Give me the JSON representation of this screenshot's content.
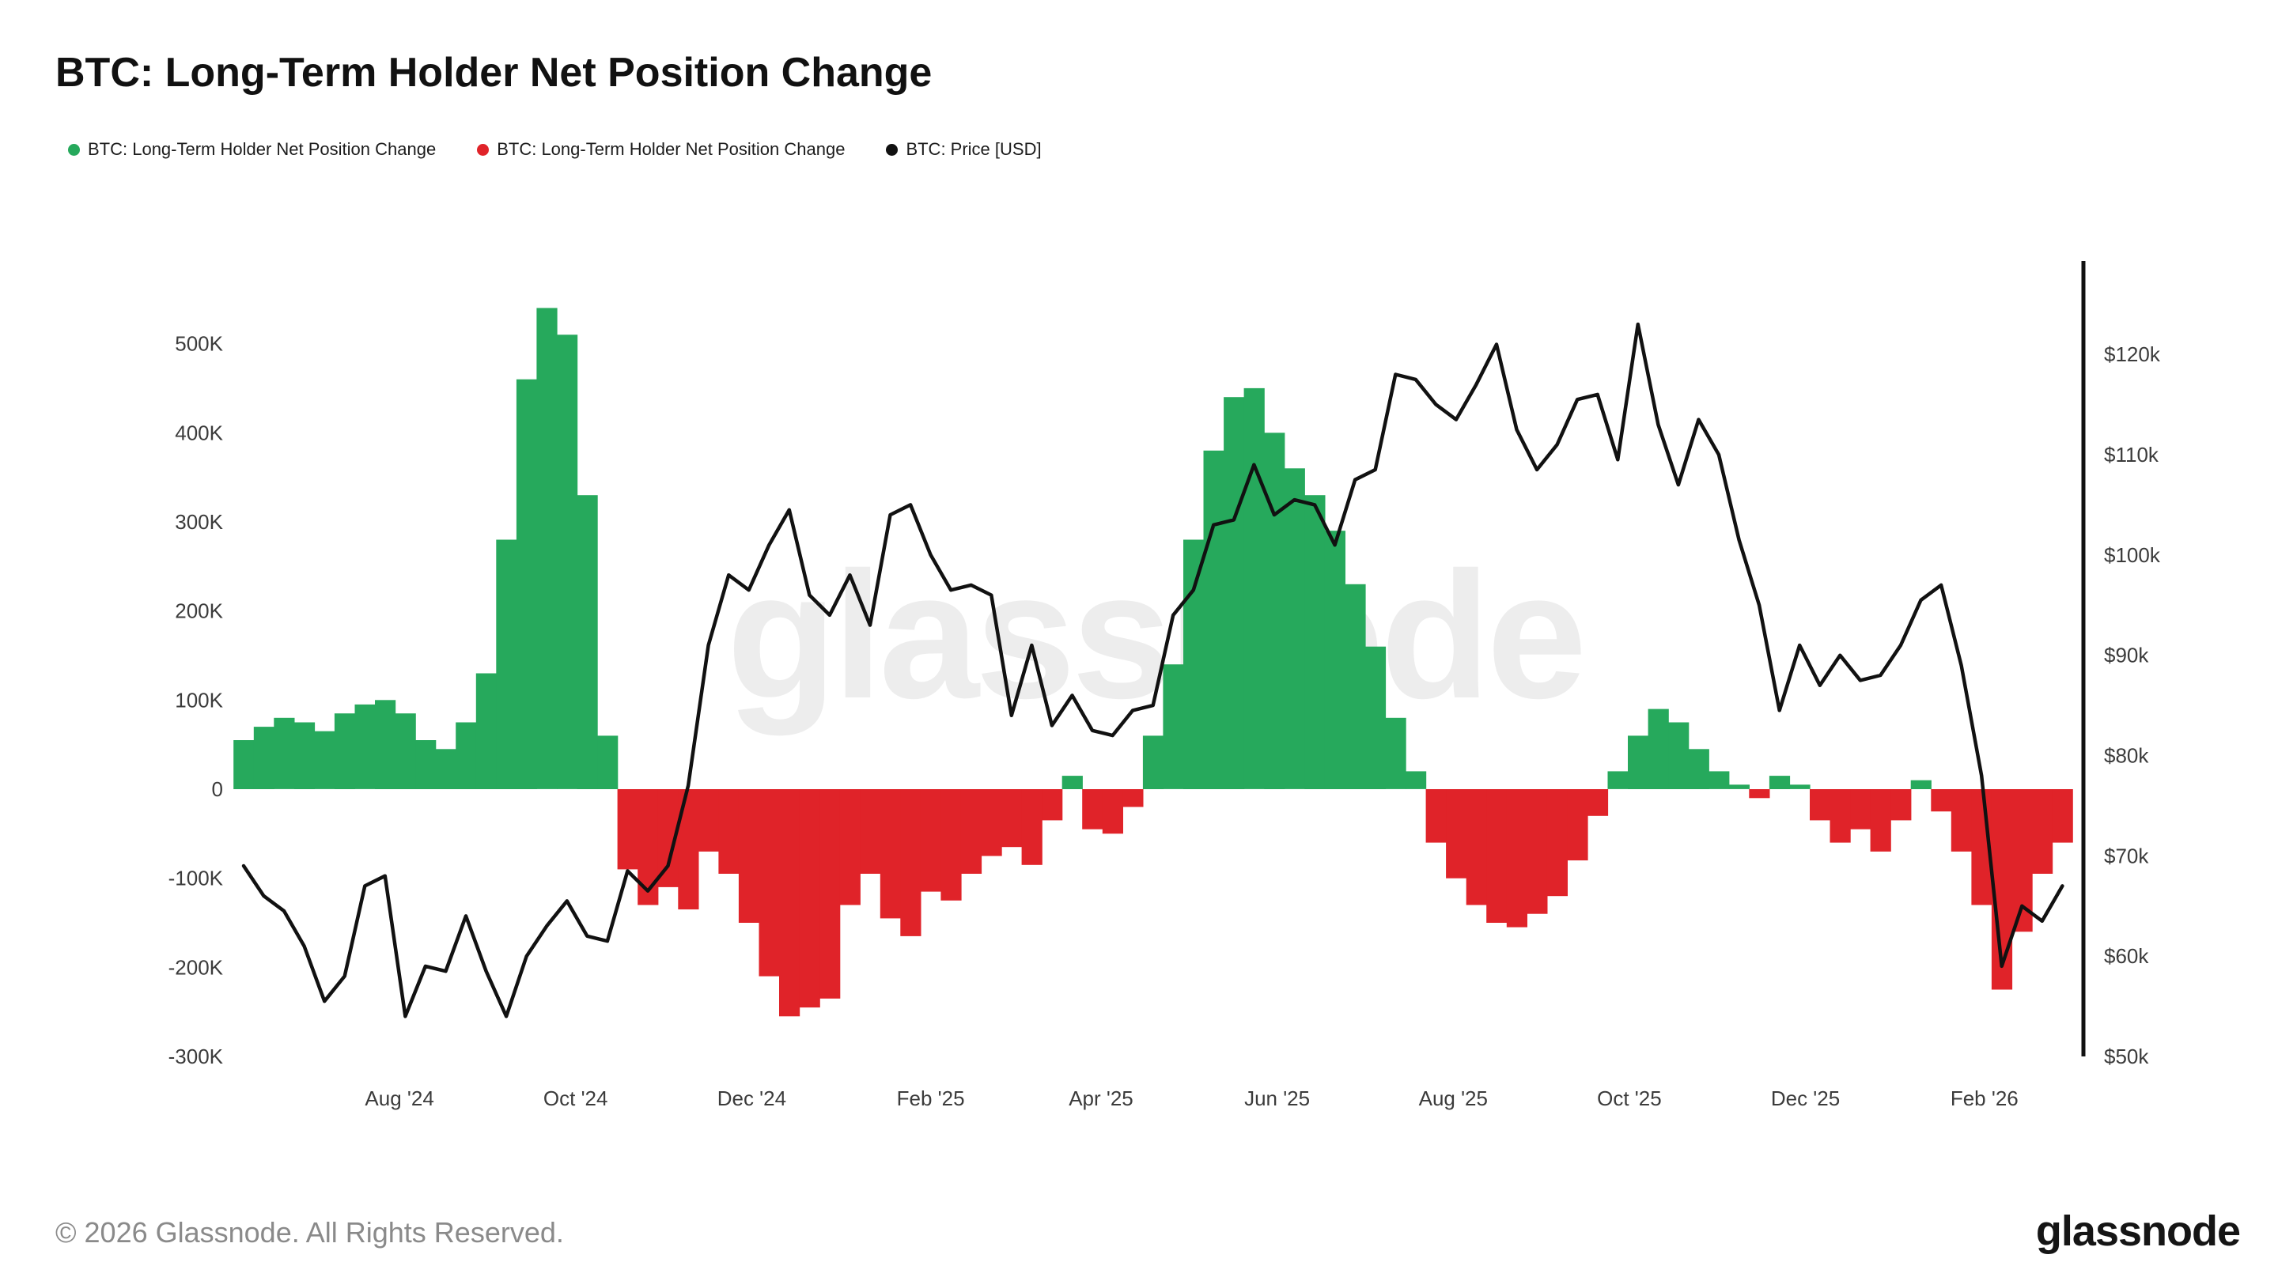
{
  "title": "BTC: Long-Term Holder Net Position Change",
  "watermark": "glassnode",
  "watermark_color": "#ededed",
  "legend": [
    {
      "label": "BTC: Long-Term Holder Net Position Change",
      "color": "#26a95c"
    },
    {
      "label": "BTC: Long-Term Holder Net Position Change",
      "color": "#e02329"
    },
    {
      "label": "BTC: Price [USD]",
      "color": "#111111"
    }
  ],
  "footer": {
    "copyright": "© 2026 Glassnode. All Rights Reserved.",
    "logo": "glassnode"
  },
  "chart_data": {
    "type": "bar+line",
    "title": "BTC: Long-Term Holder Net Position Change",
    "grid": false,
    "legend_position": "top-left",
    "x_domain": [
      "2024-06-08",
      "2026-03-01"
    ],
    "x": [
      "2024-06-08",
      "2024-06-15",
      "2024-06-22",
      "2024-06-29",
      "2024-07-06",
      "2024-07-13",
      "2024-07-20",
      "2024-07-27",
      "2024-08-03",
      "2024-08-10",
      "2024-08-17",
      "2024-08-24",
      "2024-08-31",
      "2024-09-07",
      "2024-09-14",
      "2024-09-21",
      "2024-09-28",
      "2024-10-05",
      "2024-10-12",
      "2024-10-19",
      "2024-10-26",
      "2024-11-02",
      "2024-11-09",
      "2024-11-16",
      "2024-11-23",
      "2024-11-30",
      "2024-12-07",
      "2024-12-14",
      "2024-12-21",
      "2024-12-28",
      "2025-01-04",
      "2025-01-11",
      "2025-01-18",
      "2025-01-25",
      "2025-02-01",
      "2025-02-08",
      "2025-02-15",
      "2025-02-22",
      "2025-03-01",
      "2025-03-08",
      "2025-03-15",
      "2025-03-22",
      "2025-03-29",
      "2025-04-05",
      "2025-04-12",
      "2025-04-19",
      "2025-04-26",
      "2025-05-03",
      "2025-05-10",
      "2025-05-17",
      "2025-05-24",
      "2025-05-31",
      "2025-06-07",
      "2025-06-14",
      "2025-06-21",
      "2025-06-28",
      "2025-07-05",
      "2025-07-12",
      "2025-07-19",
      "2025-07-26",
      "2025-08-02",
      "2025-08-09",
      "2025-08-16",
      "2025-08-23",
      "2025-08-30",
      "2025-09-06",
      "2025-09-13",
      "2025-09-20",
      "2025-09-27",
      "2025-10-04",
      "2025-10-11",
      "2025-10-18",
      "2025-10-25",
      "2025-11-01",
      "2025-11-08",
      "2025-11-15",
      "2025-11-22",
      "2025-11-29",
      "2025-12-06",
      "2025-12-13",
      "2025-12-20",
      "2025-12-27",
      "2026-01-03",
      "2026-01-10",
      "2026-01-17",
      "2026-01-24",
      "2026-01-31",
      "2026-02-07",
      "2026-02-14",
      "2026-02-21",
      "2026-02-28"
    ],
    "series": [
      {
        "name": "BTC: Long-Term Holder Net Position Change",
        "type": "bar",
        "axis": "left",
        "unit": "K BTC",
        "color_positive": "#26a95c",
        "color_negative": "#e02329",
        "values": [
          55,
          70,
          80,
          75,
          65,
          85,
          95,
          100,
          85,
          55,
          45,
          75,
          130,
          280,
          460,
          540,
          510,
          330,
          60,
          -90,
          -130,
          -110,
          -135,
          -70,
          -95,
          -150,
          -210,
          -255,
          -245,
          -235,
          -130,
          -95,
          -145,
          -165,
          -115,
          -125,
          -95,
          -75,
          -65,
          -85,
          -35,
          15,
          -45,
          -50,
          -20,
          60,
          140,
          280,
          380,
          440,
          450,
          400,
          360,
          330,
          290,
          230,
          160,
          80,
          20,
          -60,
          -100,
          -130,
          -150,
          -155,
          -140,
          -120,
          -80,
          -30,
          20,
          60,
          90,
          75,
          45,
          20,
          5,
          -10,
          15,
          5,
          -35,
          -60,
          -45,
          -70,
          -35,
          10,
          -25,
          -70,
          -130,
          -225,
          -160,
          -95,
          -60
        ]
      },
      {
        "name": "BTC: Price [USD]",
        "type": "line",
        "axis": "right",
        "unit": "USD thousands",
        "color": "#111111",
        "values": [
          69,
          66,
          64.5,
          61,
          55.5,
          58,
          67,
          68,
          54,
          59,
          58.5,
          64,
          58.5,
          54,
          60,
          63,
          65.5,
          62,
          61.5,
          68.5,
          66.5,
          69,
          77,
          91,
          98,
          96.5,
          101,
          104.5,
          96,
          94,
          98,
          93,
          104,
          105,
          100,
          96.5,
          97,
          96,
          84,
          91,
          83,
          86,
          82.5,
          82,
          84.5,
          85,
          94,
          96.5,
          103,
          103.5,
          109,
          104,
          105.5,
          105,
          101,
          107.5,
          108.5,
          118,
          117.5,
          115,
          113.5,
          117,
          121,
          112.5,
          108.5,
          111,
          115.5,
          116,
          109.5,
          123,
          113,
          107,
          113.5,
          110,
          101.5,
          95,
          84.5,
          91,
          87,
          90,
          87.5,
          88,
          91,
          95.5,
          97,
          89,
          78,
          59,
          65,
          63.5,
          67
        ]
      }
    ],
    "left_axis": {
      "min": -300,
      "max": 560,
      "unit": "K",
      "ticks": [
        {
          "value": 500,
          "label": "500K"
        },
        {
          "value": 400,
          "label": "400K"
        },
        {
          "value": 300,
          "label": "300K"
        },
        {
          "value": 200,
          "label": "200K"
        },
        {
          "value": 100,
          "label": "100K"
        },
        {
          "value": 0,
          "label": "0"
        },
        {
          "value": -100,
          "label": "-100K"
        },
        {
          "value": -200,
          "label": "-200K"
        },
        {
          "value": -300,
          "label": "-300K"
        }
      ]
    },
    "right_axis": {
      "min": 50,
      "max": 126.4,
      "unit": "$k",
      "ticks": [
        {
          "value": 120,
          "label": "$120k"
        },
        {
          "value": 110,
          "label": "$110k"
        },
        {
          "value": 100,
          "label": "$100k"
        },
        {
          "value": 90,
          "label": "$90k"
        },
        {
          "value": 80,
          "label": "$80k"
        },
        {
          "value": 70,
          "label": "$70k"
        },
        {
          "value": 60,
          "label": "$60k"
        },
        {
          "value": 50,
          "label": "$50k"
        }
      ]
    },
    "x_ticks": [
      {
        "date": "2024-08-01",
        "label": "Aug '24"
      },
      {
        "date": "2024-10-01",
        "label": "Oct '24"
      },
      {
        "date": "2024-12-01",
        "label": "Dec '24"
      },
      {
        "date": "2025-02-01",
        "label": "Feb '25"
      },
      {
        "date": "2025-04-01",
        "label": "Apr '25"
      },
      {
        "date": "2025-06-01",
        "label": "Jun '25"
      },
      {
        "date": "2025-08-01",
        "label": "Aug '25"
      },
      {
        "date": "2025-10-01",
        "label": "Oct '25"
      },
      {
        "date": "2025-12-01",
        "label": "Dec '25"
      },
      {
        "date": "2026-02-01",
        "label": "Feb '26"
      }
    ]
  }
}
